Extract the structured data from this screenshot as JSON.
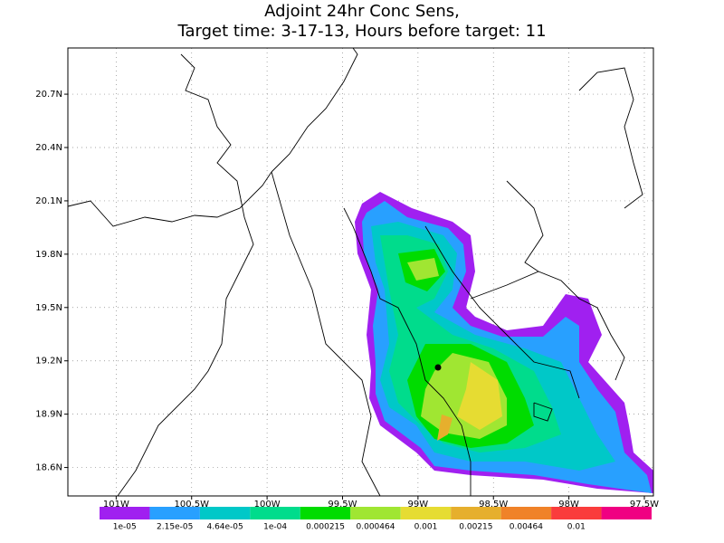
{
  "chart_data": {
    "type": "contour-map",
    "title": [
      "Adjoint 24hr Conc Sens,",
      "Target time: 3-17-13, Hours before target: 11"
    ],
    "xlim": [
      -101.32,
      -97.44
    ],
    "ylim": [
      18.44,
      20.96
    ],
    "xticks": [
      {
        "value": -101,
        "label": "101W"
      },
      {
        "value": -100.5,
        "label": "100.5W"
      },
      {
        "value": -100,
        "label": "100W"
      },
      {
        "value": -99.5,
        "label": "99.5W"
      },
      {
        "value": -99,
        "label": "99W"
      },
      {
        "value": -98.5,
        "label": "98.5W"
      },
      {
        "value": -98,
        "label": "98W"
      },
      {
        "value": -97.5,
        "label": "97.5W"
      }
    ],
    "yticks": [
      {
        "value": 18.6,
        "label": "18.6N"
      },
      {
        "value": 18.9,
        "label": "18.9N"
      },
      {
        "value": 19.2,
        "label": "19.2N"
      },
      {
        "value": 19.5,
        "label": "19.5N"
      },
      {
        "value": 19.8,
        "label": "19.8N"
      },
      {
        "value": 20.1,
        "label": "20.1N"
      },
      {
        "value": 20.4,
        "label": "20.4N"
      },
      {
        "value": 20.7,
        "label": "20.7N"
      }
    ],
    "grid": true,
    "colorbar": {
      "levels": [
        {
          "value": 1e-05,
          "label": "1e-05"
        },
        {
          "value": 2.15e-05,
          "label": "2.15e-05"
        },
        {
          "value": 4.64e-05,
          "label": "4.64e-05"
        },
        {
          "value": 0.0001,
          "label": "1e-04"
        },
        {
          "value": 0.000215,
          "label": "0.000215"
        },
        {
          "value": 0.000464,
          "label": "0.000464"
        },
        {
          "value": 0.001,
          "label": "0.001"
        },
        {
          "value": 0.00215,
          "label": "0.00215"
        },
        {
          "value": 0.00464,
          "label": "0.00464"
        },
        {
          "value": 0.01,
          "label": "0.01"
        }
      ],
      "colors": [
        "#a020f0",
        "#28a0ff",
        "#00c8c8",
        "#00dc8c",
        "#00dc00",
        "#a0e632",
        "#e6dc32",
        "#e6af2d",
        "#f08228",
        "#fa3c3c",
        "#f00082"
      ]
    }
  }
}
